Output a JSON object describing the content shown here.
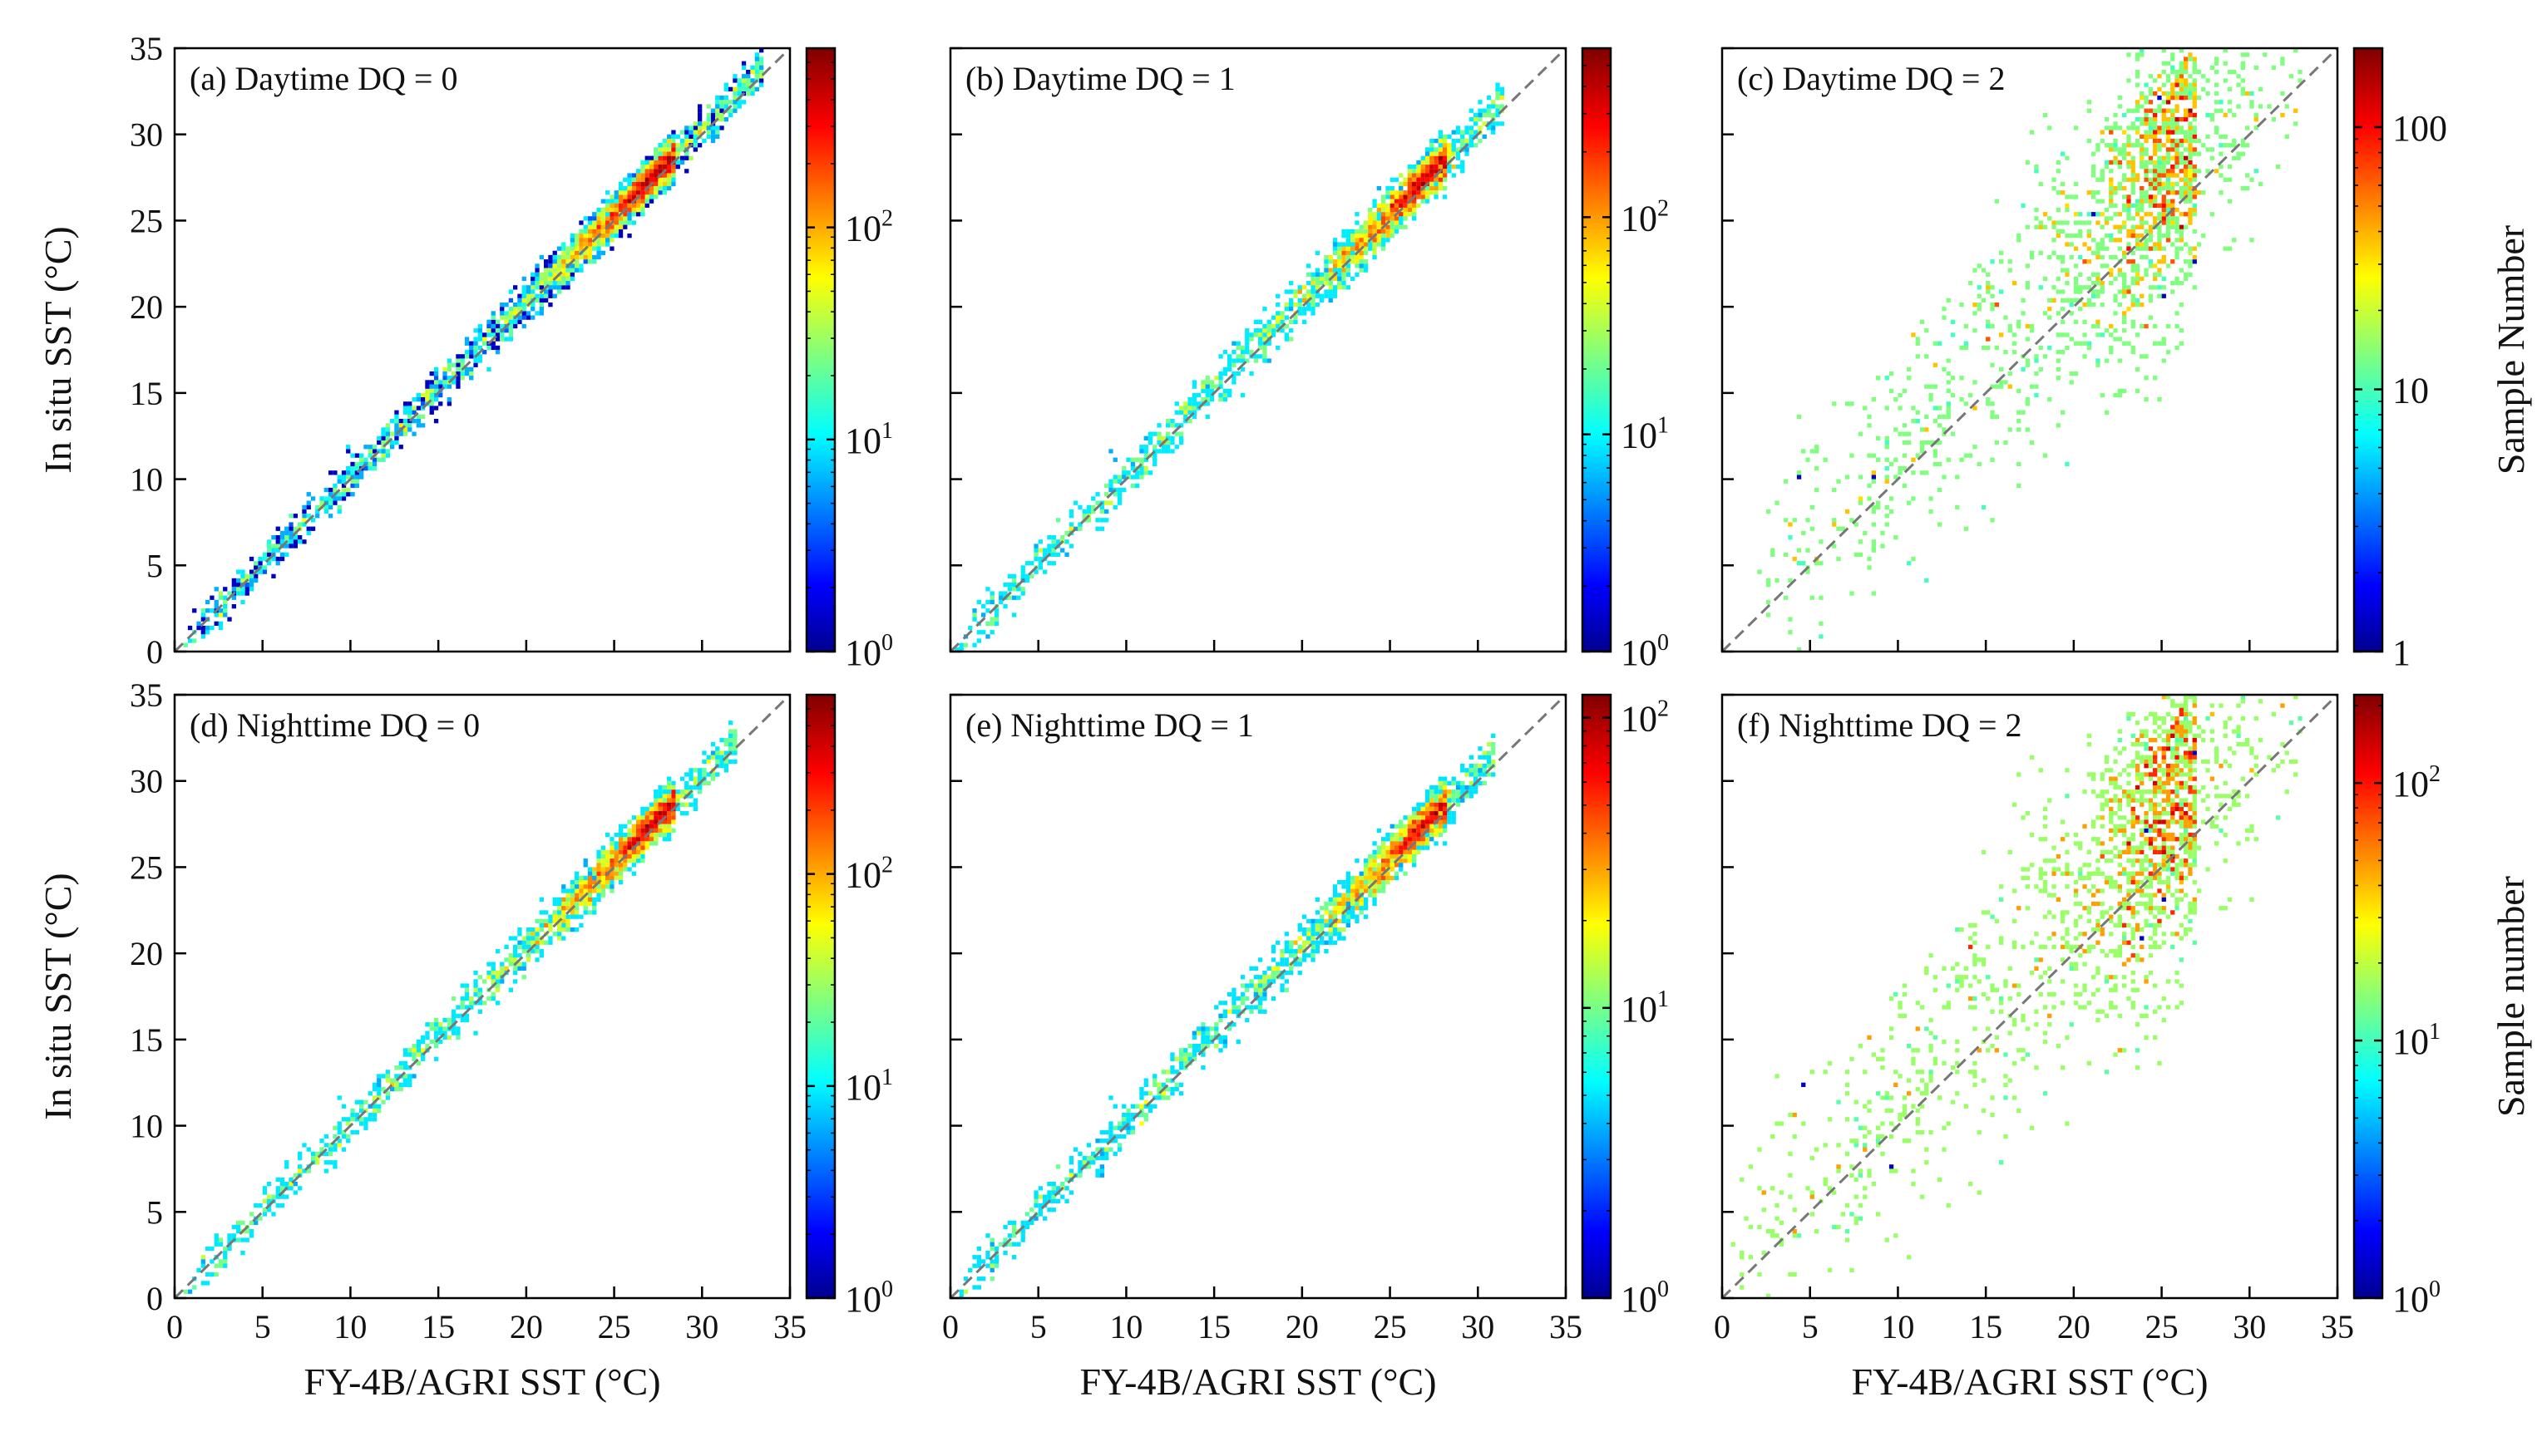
{
  "chart_data": [
    {
      "id": "a",
      "type": "heatmap",
      "title": "(a) Daytime DQ = 0",
      "xlabel": "",
      "ylabel": "In situ SST (°C)",
      "xlim": [
        0,
        35
      ],
      "ylim": [
        0,
        35
      ],
      "x_ticks": [
        "0",
        "5",
        "10",
        "15",
        "20",
        "25",
        "30",
        "35"
      ],
      "y_ticks": [
        "0",
        "5",
        "10",
        "15",
        "20",
        "25",
        "30",
        "35"
      ],
      "x_tick_labels_visible": false,
      "y_tick_labels_visible": true,
      "reference_line": "1:1 dashed",
      "colorbar": {
        "scale": "log",
        "range": [
          1,
          700
        ],
        "ticks": [
          1,
          10,
          100
        ],
        "tick_labels": [
          {
            "base": "10",
            "exp": "0"
          },
          {
            "base": "10",
            "exp": "1"
          },
          {
            "base": "10",
            "exp": "2"
          }
        ],
        "label": ""
      },
      "density": {
        "x_range": [
          0.6,
          33.5
        ],
        "offset": 0.3,
        "spread": 0.55,
        "peak_x": 28.5,
        "max_count": 700
      }
    },
    {
      "id": "b",
      "type": "heatmap",
      "title": "(b) Daytime DQ = 1",
      "xlabel": "",
      "ylabel": "",
      "xlim": [
        0,
        35
      ],
      "ylim": [
        0,
        35
      ],
      "x_ticks": [
        "0",
        "5",
        "10",
        "15",
        "20",
        "25",
        "30",
        "35"
      ],
      "y_ticks": [
        "0",
        "5",
        "10",
        "15",
        "20",
        "25",
        "30",
        "35"
      ],
      "x_tick_labels_visible": false,
      "y_tick_labels_visible": false,
      "reference_line": "1:1 dashed",
      "colorbar": {
        "scale": "log",
        "range": [
          1,
          600
        ],
        "ticks": [
          1,
          10,
          100
        ],
        "tick_labels": [
          {
            "base": "10",
            "exp": "0"
          },
          {
            "base": "10",
            "exp": "1"
          },
          {
            "base": "10",
            "exp": "2"
          }
        ],
        "label": ""
      },
      "density": {
        "x_range": [
          0.4,
          31.5
        ],
        "offset": 0.4,
        "spread": 0.65,
        "peak_x": 28.3,
        "max_count": 600
      }
    },
    {
      "id": "c",
      "type": "heatmap",
      "title": "(c) Daytime DQ = 2",
      "xlabel": "",
      "ylabel": "",
      "xlim": [
        0,
        35
      ],
      "ylim": [
        0,
        35
      ],
      "x_ticks": [
        "0",
        "5",
        "10",
        "15",
        "20",
        "25",
        "30",
        "35"
      ],
      "y_ticks": [
        "0",
        "5",
        "10",
        "15",
        "20",
        "25",
        "30",
        "35"
      ],
      "x_tick_labels_visible": false,
      "y_tick_labels_visible": false,
      "reference_line": "1:1 dashed",
      "colorbar": {
        "scale": "log",
        "range": [
          1,
          200
        ],
        "ticks": [
          1,
          10,
          100
        ],
        "tick_labels": [
          {
            "base": "1",
            "exp": ""
          },
          {
            "base": "10",
            "exp": ""
          },
          {
            "base": "100",
            "exp": ""
          }
        ],
        "label": "Sample Number"
      },
      "density": {
        "x_range": [
          2.0,
          33.0
        ],
        "offset": 3.0,
        "spread": 2.4,
        "peak_x": 27.0,
        "max_count": 200
      }
    },
    {
      "id": "d",
      "type": "heatmap",
      "title": "(d) Nighttime DQ = 0",
      "xlabel": "FY-4B/AGRI SST (°C)",
      "ylabel": "In situ SST (°C)",
      "xlim": [
        0,
        35
      ],
      "ylim": [
        0,
        35
      ],
      "x_ticks": [
        "0",
        "5",
        "10",
        "15",
        "20",
        "25",
        "30",
        "35"
      ],
      "y_ticks": [
        "0",
        "5",
        "10",
        "15",
        "20",
        "25",
        "30",
        "35"
      ],
      "x_tick_labels_visible": true,
      "y_tick_labels_visible": true,
      "reference_line": "1:1 dashed",
      "colorbar": {
        "scale": "log",
        "range": [
          1,
          700
        ],
        "ticks": [
          1,
          10,
          100
        ],
        "tick_labels": [
          {
            "base": "10",
            "exp": "0"
          },
          {
            "base": "10",
            "exp": "1"
          },
          {
            "base": "10",
            "exp": "2"
          }
        ],
        "label": ""
      },
      "density": {
        "x_range": [
          0.6,
          32.0
        ],
        "offset": 0.3,
        "spread": 0.6,
        "peak_x": 28.5,
        "max_count": 700
      }
    },
    {
      "id": "e",
      "type": "heatmap",
      "title": "(e) Nighttime DQ = 1",
      "xlabel": "FY-4B/AGRI SST (°C)",
      "ylabel": "",
      "xlim": [
        0,
        35
      ],
      "ylim": [
        0,
        35
      ],
      "x_ticks": [
        "0",
        "5",
        "10",
        "15",
        "20",
        "25",
        "30",
        "35"
      ],
      "y_ticks": [
        "0",
        "5",
        "10",
        "15",
        "20",
        "25",
        "30",
        "35"
      ],
      "x_tick_labels_visible": true,
      "y_tick_labels_visible": false,
      "reference_line": "1:1 dashed",
      "colorbar": {
        "scale": "log",
        "range": [
          1,
          120
        ],
        "ticks": [
          1,
          10,
          100
        ],
        "tick_labels": [
          {
            "base": "10",
            "exp": "0"
          },
          {
            "base": "10",
            "exp": "1"
          },
          {
            "base": "10",
            "exp": "2"
          }
        ],
        "label": ""
      },
      "density": {
        "x_range": [
          0.5,
          31.0
        ],
        "offset": 0.5,
        "spread": 0.65,
        "peak_x": 28.3,
        "max_count": 120
      }
    },
    {
      "id": "f",
      "type": "heatmap",
      "title": "(f) Nighttime DQ = 2",
      "xlabel": "FY-4B/AGRI SST (°C)",
      "ylabel": "",
      "xlim": [
        0,
        35
      ],
      "ylim": [
        0,
        35
      ],
      "x_ticks": [
        "0",
        "5",
        "10",
        "15",
        "20",
        "25",
        "30",
        "35"
      ],
      "y_ticks": [
        "0",
        "5",
        "10",
        "15",
        "20",
        "25",
        "30",
        "35"
      ],
      "x_tick_labels_visible": true,
      "y_tick_labels_visible": false,
      "reference_line": "1:1 dashed",
      "colorbar": {
        "scale": "log",
        "range": [
          1,
          220
        ],
        "ticks": [
          1,
          10,
          100
        ],
        "tick_labels": [
          {
            "base": "10",
            "exp": "0"
          },
          {
            "base": "10",
            "exp": "1"
          },
          {
            "base": "10",
            "exp": "2"
          }
        ],
        "label": "Sample number"
      },
      "density": {
        "x_range": [
          0.5,
          33.0
        ],
        "offset": 3.2,
        "spread": 2.6,
        "peak_x": 27.0,
        "max_count": 220
      }
    }
  ]
}
